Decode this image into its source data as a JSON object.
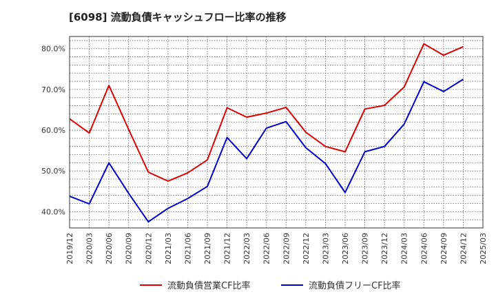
{
  "title": "[6098]  流動負債キャッシュフロー比率の推移",
  "chart_data": {
    "type": "line",
    "x": [
      "2019/12",
      "2020/03",
      "2020/06",
      "2020/09",
      "2020/12",
      "2021/03",
      "2021/06",
      "2021/09",
      "2021/12",
      "2022/03",
      "2022/06",
      "2022/09",
      "2022/12",
      "2023/03",
      "2023/06",
      "2023/09",
      "2023/12",
      "2024/03",
      "2024/06",
      "2024/09",
      "2024/12",
      "2025/03"
    ],
    "series": [
      {
        "name": "流動負債営業CF比率",
        "color": "#dd0000",
        "values": [
          62.8,
          59.3,
          71.0,
          60.2,
          49.7,
          47.5,
          49.5,
          52.7,
          65.5,
          63.2,
          64.2,
          65.6,
          59.5,
          56.0,
          54.7,
          65.2,
          66.1,
          70.6,
          81.2,
          78.4,
          80.5,
          null
        ]
      },
      {
        "name": "流動負債フリーCF比率",
        "color": "#0000cc",
        "values": [
          43.8,
          41.9,
          52.0,
          44.5,
          37.5,
          40.8,
          43.2,
          46.2,
          58.2,
          53.0,
          60.5,
          62.1,
          55.7,
          51.8,
          44.7,
          54.7,
          56.0,
          61.5,
          71.9,
          69.5,
          72.5,
          null
        ]
      }
    ],
    "yticks": [
      "40.0%",
      "50.0%",
      "60.0%",
      "70.0%",
      "80.0%"
    ],
    "ytick_values": [
      40,
      50,
      60,
      70,
      80
    ],
    "ylim": [
      36,
      83
    ],
    "grid": true,
    "legend_position": "bottom"
  }
}
